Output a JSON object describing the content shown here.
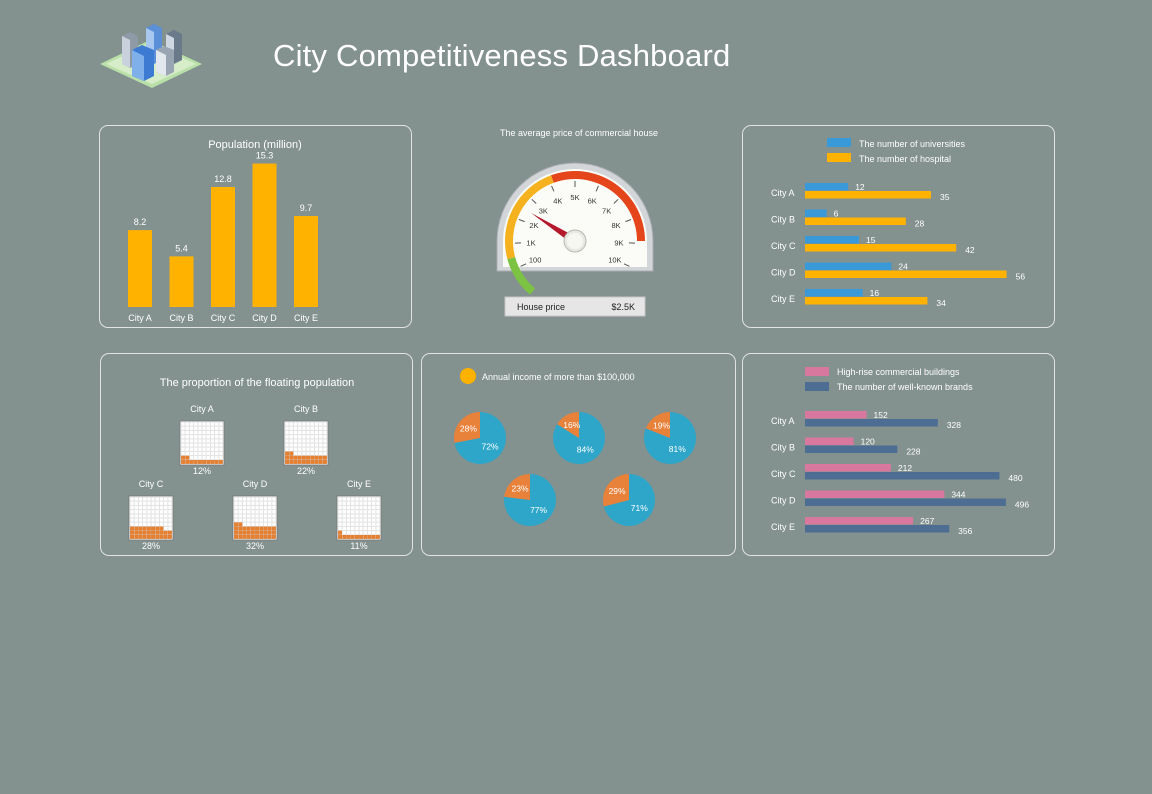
{
  "page": {
    "title": "City Competitiveness Dashboard"
  },
  "colors": {
    "background": "#83918f",
    "bar_orange": "#ffb300",
    "blue": "#3a9ad9",
    "pie_blue": "#2ea6c9",
    "pie_orange": "#e8813a",
    "pink": "#d9789f",
    "navy": "#4d6e92",
    "waffle_fill": "#e8812f"
  },
  "chart_data": [
    {
      "id": "population",
      "type": "bar",
      "title": "Population (million)",
      "categories": [
        "City A",
        "City B",
        "City C",
        "City D",
        "City E"
      ],
      "values": [
        8.2,
        5.4,
        12.8,
        15.3,
        9.7
      ],
      "value_labels": [
        "8.2",
        "5.4",
        "12.8",
        "15.3",
        "9.7"
      ],
      "ylim": [
        0,
        16
      ]
    },
    {
      "id": "house_price",
      "type": "gauge",
      "title": "The average price of commercial house",
      "tick_labels": [
        "100",
        "1K",
        "2K",
        "3K",
        "4K",
        "5K",
        "6K",
        "7K",
        "8K",
        "9K",
        "10K"
      ],
      "value": 2500,
      "value_label": "$2.5K",
      "readout_label": "House price"
    },
    {
      "id": "universities_hospitals",
      "type": "bar",
      "orientation": "horizontal",
      "categories": [
        "City A",
        "City B",
        "City C",
        "City D",
        "City E"
      ],
      "series": [
        {
          "name": "The number of universities",
          "values": [
            12,
            6,
            15,
            24,
            16
          ],
          "labels": [
            "12",
            "6",
            "15",
            "24",
            "16"
          ]
        },
        {
          "name": "The number of hospital",
          "values": [
            35,
            28,
            42,
            56,
            34
          ],
          "labels": [
            "35",
            "28",
            "42",
            "56",
            "34"
          ]
        }
      ],
      "legend": "top"
    },
    {
      "id": "floating_population",
      "type": "waffle",
      "title": "The proportion of the floating population",
      "categories": [
        "City A",
        "City B",
        "City C",
        "City D",
        "City E"
      ],
      "values": [
        12,
        22,
        28,
        32,
        11
      ],
      "labels": [
        "12%",
        "22%",
        "28%",
        "32%",
        "11%"
      ]
    },
    {
      "id": "annual_income",
      "type": "pie",
      "legend": "Annual income of more than $100,000",
      "slices": [
        {
          "orange": 28,
          "blue": 72,
          "orange_label": "28%",
          "blue_label": "72%"
        },
        {
          "orange": 16,
          "blue": 84,
          "orange_label": "16%",
          "blue_label": "84%"
        },
        {
          "orange": 19,
          "blue": 81,
          "orange_label": "19%",
          "blue_label": "81%"
        },
        {
          "orange": 23,
          "blue": 77,
          "orange_label": "23%",
          "blue_label": "77%"
        },
        {
          "orange": 29,
          "blue": 71,
          "orange_label": "29%",
          "blue_label": "71%"
        }
      ]
    },
    {
      "id": "buildings_brands",
      "type": "bar",
      "orientation": "horizontal",
      "categories": [
        "City A",
        "City B",
        "City C",
        "City D",
        "City E"
      ],
      "series": [
        {
          "name": "High-rise commercial buildings",
          "values": [
            152,
            120,
            212,
            344,
            267
          ],
          "labels": [
            "152",
            "120",
            "212",
            "344",
            "267"
          ]
        },
        {
          "name": "The number of well-known brands",
          "values": [
            328,
            228,
            480,
            496,
            356
          ],
          "labels": [
            "328",
            "228",
            "480",
            "496",
            "356"
          ]
        }
      ],
      "legend": "top"
    }
  ]
}
